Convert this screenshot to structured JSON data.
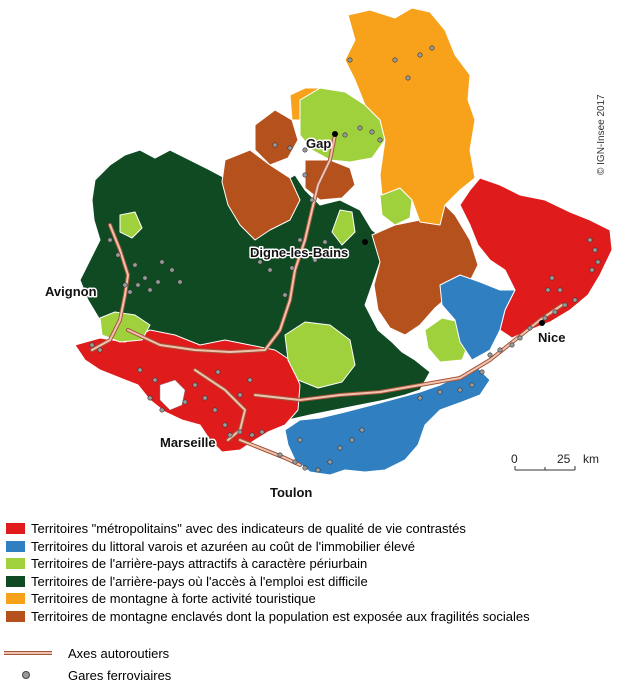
{
  "map": {
    "copyright": "© IGN-Insee 2017",
    "cities": {
      "gap": "Gap",
      "digne": "Digne-les-Bains",
      "avignon": "Avignon",
      "nice": "Nice",
      "marseille": "Marseille",
      "toulon": "Toulon"
    },
    "scale": {
      "zero": "0",
      "value": "25",
      "unit": "km"
    }
  },
  "colors": {
    "red": "#e01b1b",
    "blue": "#2f7fc1",
    "lightgreen": "#9ed13c",
    "darkgreen": "#0f4a23",
    "orange": "#f7a21a",
    "brown": "#b5511d",
    "road": "#f2c2ae",
    "station": "#9a9a9a"
  },
  "legend": {
    "items": [
      {
        "label": "Territoires \"métropolitains\" avec des indicateurs de qualité de vie contrastés",
        "color": "#e01b1b"
      },
      {
        "label": "Territoires du littoral varois et azuréen au coût de l'immobilier élevé",
        "color": "#2f7fc1"
      },
      {
        "label": "Territoires de l'arrière-pays attractifs à caractère périurbain",
        "color": "#9ed13c"
      },
      {
        "label": "Territoires de l'arrière-pays où l'accès à l'emploi est difficile",
        "color": "#0f4a23"
      },
      {
        "label": "Territoires de montagne à forte activité touristique",
        "color": "#f7a21a"
      },
      {
        "label": "Territoires de montagne enclavés dont la population est exposée aux fragilités sociales",
        "color": "#b5511d"
      }
    ],
    "roads": "Axes autoroutiers",
    "stations": "Gares ferroviaires"
  }
}
